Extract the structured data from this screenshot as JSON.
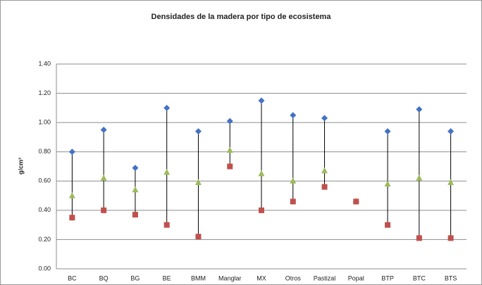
{
  "chart_data": {
    "type": "high-low",
    "title": "Densidades de la madera por tipo de ecosistema",
    "y_label": "g/cm³",
    "categories": [
      "BC",
      "BQ",
      "BG",
      "BE",
      "BMM",
      "Manglar",
      "MX",
      "Otros",
      "Pastizal",
      "Popal",
      "BTP",
      "BTC",
      "BTS"
    ],
    "series": [
      {
        "color": "#4472c4",
        "marker": "diamond",
        "values": [
          0.8,
          0.95,
          0.69,
          1.1,
          0.94,
          1.01,
          1.15,
          1.05,
          1.03,
          0.46,
          0.94,
          1.09,
          0.94
        ]
      },
      {
        "color": "#9bbb59",
        "marker": "triangle",
        "values": [
          0.5,
          0.62,
          0.54,
          0.66,
          0.59,
          0.81,
          0.65,
          0.6,
          0.67,
          0.46,
          0.58,
          0.62,
          0.59
        ]
      },
      {
        "color": "#c0504d",
        "marker": "square",
        "values": [
          0.35,
          0.4,
          0.37,
          0.3,
          0.22,
          0.7,
          0.4,
          0.46,
          0.56,
          0.46,
          0.3,
          0.21,
          0.21
        ]
      }
    ],
    "ylim": [
      0,
      1.4
    ],
    "yticks": [
      {
        "value": 0,
        "label": "0.00"
      },
      {
        "value": 0.2,
        "label": "0.20"
      },
      {
        "value": 0.4,
        "label": "0.40"
      },
      {
        "value": 0.6,
        "label": "0.60"
      },
      {
        "value": 0.8,
        "label": "0.80"
      },
      {
        "value": 1.0,
        "label": "1.00"
      },
      {
        "value": 1.2,
        "label": "1.20"
      },
      {
        "value": 1.4,
        "label": "1.40"
      }
    ],
    "grid": true
  }
}
